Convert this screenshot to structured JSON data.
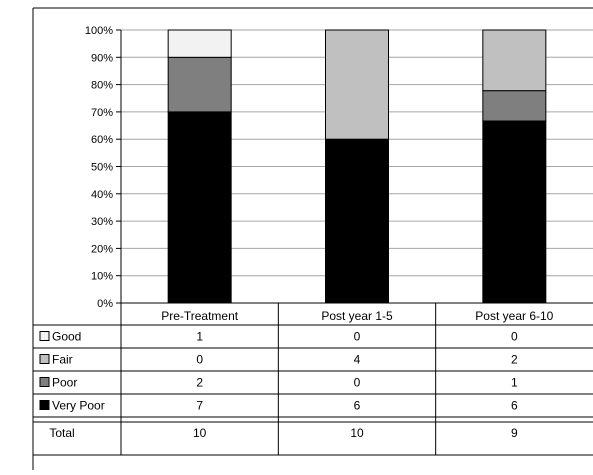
{
  "chart_data": {
    "type": "bar",
    "stacked": true,
    "normalized_percent": true,
    "categories": [
      "Pre-Treatment",
      "Post year 1-5",
      "Post year 6-10"
    ],
    "series": [
      {
        "name": "Very Poor",
        "values": [
          7,
          6,
          6
        ],
        "color": "#000000"
      },
      {
        "name": "Poor",
        "values": [
          2,
          0,
          1
        ],
        "color": "#7f7f7f"
      },
      {
        "name": "Fair",
        "values": [
          0,
          4,
          2
        ],
        "color": "#c0c0c0"
      },
      {
        "name": "Good",
        "values": [
          1,
          0,
          0
        ],
        "color": "#f2f2f2"
      }
    ],
    "table_order": [
      "Good",
      "Fair",
      "Poor",
      "Very Poor"
    ],
    "totals": {
      "label": "Total",
      "values": [
        10,
        10,
        9
      ]
    },
    "y_ticks": [
      "0%",
      "10%",
      "20%",
      "30%",
      "40%",
      "50%",
      "60%",
      "70%",
      "80%",
      "90%",
      "100%"
    ],
    "ylim": [
      0,
      100
    ],
    "grid": true,
    "legend": "data-table-left",
    "title": "",
    "xlabel": "",
    "ylabel": ""
  }
}
